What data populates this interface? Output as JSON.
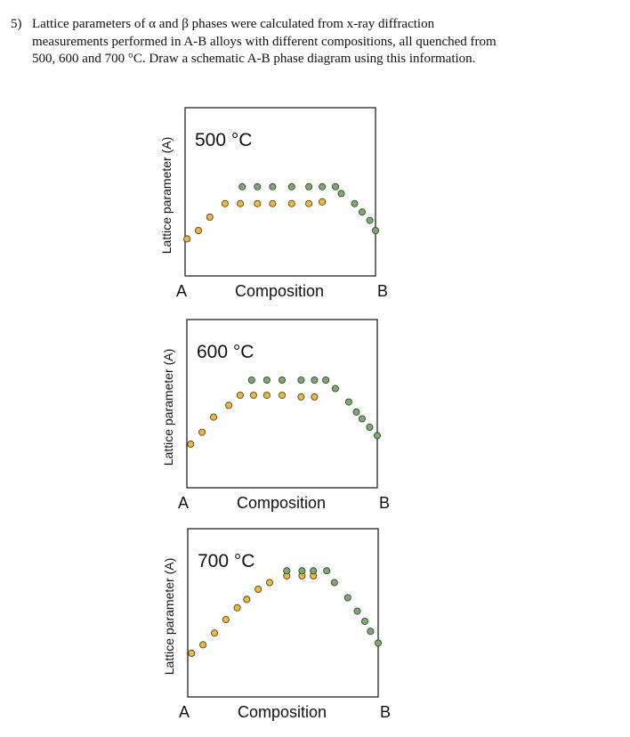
{
  "problem": {
    "number": "5)",
    "lines": [
      "Lattice parameters of α and β phases were calculated from x-ray diffraction",
      "measurements performed in A-B alloys with different compositions, all quenched from",
      "500, 600 and 700 °C. Draw a schematic A-B phase diagram  using this information."
    ]
  },
  "colors": {
    "alpha": "#f2b830",
    "beta": "#79ab6b",
    "edge": "#333333"
  },
  "chart_data": [
    {
      "type": "scatter",
      "title": "500 °C",
      "xlabel": "Composition",
      "ylabel": "Lattice parameter (A)",
      "x_ticks": [
        "A",
        "B"
      ],
      "xlim": [
        0,
        1
      ],
      "ylim": [
        0,
        1
      ],
      "series": [
        {
          "values_x": [
            0.01,
            0.07,
            0.13,
            0.21,
            0.29,
            0.38,
            0.46,
            0.56,
            0.65,
            0.72
          ],
          "values_y": [
            0.22,
            0.27,
            0.35,
            0.43,
            0.43,
            0.43,
            0.43,
            0.43,
            0.43,
            0.44
          ]
        },
        {
          "values_x": [
            0.3,
            0.38,
            0.46,
            0.56,
            0.65,
            0.72,
            0.79,
            0.82,
            0.89,
            0.93,
            0.97,
            1.0
          ],
          "values_y": [
            0.53,
            0.53,
            0.53,
            0.53,
            0.53,
            0.53,
            0.53,
            0.49,
            0.43,
            0.38,
            0.33,
            0.27
          ]
        }
      ]
    },
    {
      "type": "scatter",
      "title": "600 °C",
      "xlabel": "Composition",
      "ylabel": "Lattice parameter (A)",
      "x_ticks": [
        "A",
        "B"
      ],
      "xlim": [
        0,
        1
      ],
      "ylim": [
        0,
        1
      ],
      "series": [
        {
          "values_x": [
            0.02,
            0.08,
            0.14,
            0.22,
            0.28,
            0.35,
            0.42,
            0.5,
            0.6,
            0.67
          ],
          "values_y": [
            0.26,
            0.33,
            0.42,
            0.49,
            0.55,
            0.55,
            0.55,
            0.55,
            0.54,
            0.54
          ]
        },
        {
          "values_x": [
            0.34,
            0.42,
            0.5,
            0.6,
            0.67,
            0.73,
            0.78,
            0.85,
            0.89,
            0.92,
            0.96,
            1.0
          ],
          "values_y": [
            0.64,
            0.64,
            0.64,
            0.64,
            0.64,
            0.64,
            0.59,
            0.51,
            0.45,
            0.41,
            0.36,
            0.31
          ]
        }
      ]
    },
    {
      "type": "scatter",
      "title": "700 °C",
      "xlabel": "Composition",
      "ylabel": "Lattice parameter (A)",
      "x_ticks": [
        "A",
        "B"
      ],
      "xlim": [
        0,
        1
      ],
      "ylim": [
        0,
        1
      ],
      "series": [
        {
          "values_x": [
            0.02,
            0.08,
            0.14,
            0.2,
            0.26,
            0.31,
            0.37,
            0.43,
            0.52,
            0.6,
            0.66
          ],
          "values_y": [
            0.26,
            0.31,
            0.38,
            0.46,
            0.53,
            0.58,
            0.64,
            0.68,
            0.72,
            0.72,
            0.72
          ]
        },
        {
          "values_x": [
            0.52,
            0.6,
            0.66,
            0.73,
            0.77,
            0.84,
            0.89,
            0.93,
            0.96,
            1.0
          ],
          "values_y": [
            0.75,
            0.75,
            0.75,
            0.75,
            0.68,
            0.59,
            0.51,
            0.45,
            0.39,
            0.32
          ]
        }
      ]
    }
  ]
}
